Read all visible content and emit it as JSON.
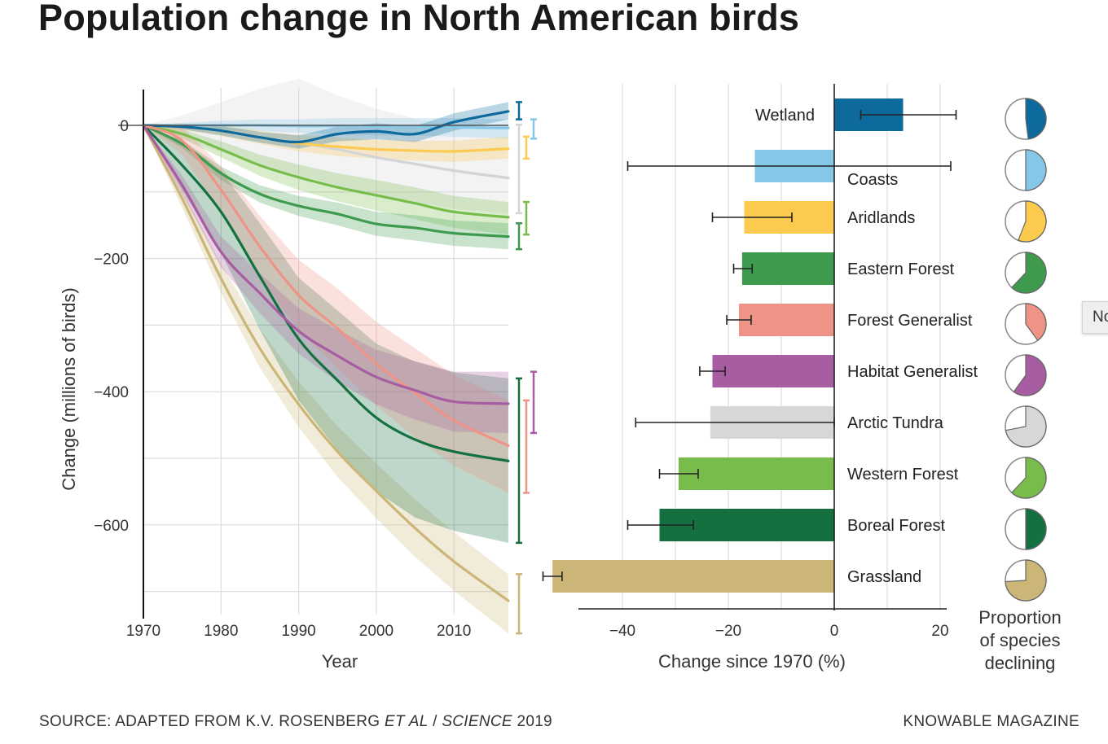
{
  "title": "Population change in North American birds",
  "footer": {
    "source_prefix": "SOURCE: ADAPTED FROM K.V. ROSENBERG ",
    "source_italic1": "ET AL",
    "source_mid": " / ",
    "source_italic2": "SCIENCE",
    "source_suffix": " 2019",
    "brand": "KNOWABLE MAGAZINE"
  },
  "tooltip_fragment": "No",
  "chart_data": [
    {
      "type": "line",
      "xlabel": "Year",
      "ylabel": "Change (millions of birds)",
      "xlim": [
        1970,
        2017
      ],
      "ylim": [
        -733,
        54
      ],
      "xticks": [
        "1970",
        "1980",
        "1990",
        "2000",
        "2010"
      ],
      "yticks": [
        {
          "value": 0,
          "label": "0"
        },
        {
          "value": -200,
          "label": "−200"
        },
        {
          "value": -400,
          "label": "−400"
        },
        {
          "value": -600,
          "label": "−600"
        }
      ],
      "grid": true,
      "x": [
        1970,
        1975,
        1980,
        1985,
        1990,
        1995,
        2000,
        2005,
        2010,
        2017
      ],
      "series": [
        {
          "key": "arctic-tundra",
          "color": "#d3d4d6",
          "values": [
            0,
            -2,
            -8,
            -18,
            -26,
            -36,
            -48,
            -58,
            -68,
            -79
          ],
          "lower": [
            0,
            -20,
            -40,
            -60,
            -75,
            -90,
            -105,
            -115,
            -125,
            -132
          ],
          "upper": [
            0,
            15,
            35,
            55,
            70,
            45,
            25,
            10,
            0,
            1
          ]
        },
        {
          "key": "coasts",
          "color": "#84c7e6",
          "values": [
            0,
            0,
            0,
            0,
            -1,
            -1,
            -2,
            -2,
            -3,
            -4
          ],
          "lower": [
            0,
            -4,
            -7,
            -9,
            -11,
            -13,
            -15,
            -15,
            -17,
            -20
          ],
          "upper": [
            0,
            4,
            7,
            9,
            9,
            11,
            11,
            11,
            11,
            9
          ]
        },
        {
          "key": "aridlands",
          "color": "#fcca4f",
          "values": [
            0,
            -2,
            -8,
            -18,
            -27,
            -32,
            -36,
            -38,
            -39,
            -35
          ],
          "lower": [
            0,
            -7,
            -16,
            -28,
            -39,
            -46,
            -50,
            -53,
            -55,
            -50
          ],
          "upper": [
            0,
            3,
            0,
            -8,
            -15,
            -18,
            -22,
            -23,
            -23,
            -17
          ]
        },
        {
          "key": "western-forest",
          "color": "#78bd4c",
          "values": [
            0,
            -13,
            -36,
            -60,
            -78,
            -93,
            -105,
            -117,
            -130,
            -138
          ],
          "lower": [
            0,
            -20,
            -48,
            -76,
            -97,
            -114,
            -128,
            -141,
            -154,
            -164
          ],
          "upper": [
            0,
            -6,
            -24,
            -44,
            -59,
            -72,
            -82,
            -93,
            -106,
            -115
          ]
        },
        {
          "key": "eastern-forest",
          "color": "#3e9a4c",
          "values": [
            0,
            -28,
            -72,
            -103,
            -121,
            -133,
            -148,
            -154,
            -162,
            -167
          ],
          "lower": [
            0,
            -34,
            -82,
            -116,
            -136,
            -150,
            -166,
            -173,
            -181,
            -186
          ],
          "upper": [
            0,
            -22,
            -62,
            -90,
            -106,
            -116,
            -130,
            -135,
            -143,
            -147
          ]
        },
        {
          "key": "wetland",
          "color": "#0e6a9c",
          "values": [
            0,
            -2,
            -8,
            -18,
            -25,
            -13,
            -9,
            -13,
            5,
            21
          ],
          "lower": [
            0,
            -6,
            -15,
            -26,
            -35,
            -24,
            -21,
            -25,
            -8,
            9
          ],
          "upper": [
            0,
            2,
            -1,
            -10,
            -15,
            -2,
            3,
            -1,
            18,
            35
          ]
        },
        {
          "key": "grassland",
          "color": "#cbb677",
          "values": [
            0,
            -110,
            -230,
            -335,
            -419,
            -490,
            -549,
            -605,
            -655,
            -714
          ],
          "lower": [
            0,
            -124,
            -252,
            -364,
            -453,
            -528,
            -590,
            -648,
            -699,
            -763
          ],
          "upper": [
            0,
            -96,
            -208,
            -306,
            -385,
            -452,
            -508,
            -562,
            -611,
            -674
          ]
        },
        {
          "key": "boreal-forest",
          "color": "#157040",
          "values": [
            0,
            -60,
            -130,
            -227,
            -321,
            -383,
            -439,
            -472,
            -490,
            -504
          ],
          "lower": [
            0,
            -97,
            -192,
            -307,
            -413,
            -488,
            -550,
            -589,
            -609,
            -627
          ],
          "upper": [
            0,
            -23,
            -68,
            -147,
            -229,
            -278,
            -328,
            -355,
            -371,
            -380
          ]
        },
        {
          "key": "forest-generalist",
          "color": "#ee9486",
          "values": [
            0,
            -23,
            -97,
            -182,
            -255,
            -305,
            -358,
            -402,
            -443,
            -481
          ],
          "lower": [
            0,
            -44,
            -132,
            -228,
            -308,
            -365,
            -421,
            -469,
            -511,
            -552
          ],
          "upper": [
            0,
            -2,
            -62,
            -136,
            -202,
            -245,
            -295,
            -335,
            -375,
            -413
          ]
        },
        {
          "key": "habitat-generalist",
          "color": "#a85ca1",
          "values": [
            0,
            -90,
            -190,
            -252,
            -309,
            -346,
            -378,
            -398,
            -415,
            -418
          ],
          "lower": [
            0,
            -104,
            -213,
            -282,
            -343,
            -385,
            -419,
            -442,
            -460,
            -462
          ],
          "upper": [
            0,
            -76,
            -167,
            -222,
            -275,
            -307,
            -337,
            -354,
            -370,
            -370
          ]
        }
      ]
    },
    {
      "type": "bar",
      "orientation": "horizontal",
      "xlabel": "Change since 1970 (%)",
      "xlim": [
        -48,
        21
      ],
      "xticks": [
        {
          "value": -40,
          "label": "−40"
        },
        {
          "value": -20,
          "label": "−20"
        },
        {
          "value": 0,
          "label": "0"
        },
        {
          "value": 20,
          "label": "20"
        }
      ],
      "grid": true,
      "categories": [
        "Wetland",
        "Coasts",
        "Aridlands",
        "Eastern Forest",
        "Forest Generalist",
        "Habitat Generalist",
        "Arctic Tundra",
        "Western Forest",
        "Boreal Forest",
        "Grassland"
      ],
      "colors": [
        "#0e6a9c",
        "#84c7e6",
        "#fcca4f",
        "#3e9a4c",
        "#ee9486",
        "#a85ca1",
        "#d6d7d9",
        "#78bd4c",
        "#157040",
        "#cbb677"
      ],
      "values": [
        13,
        -15,
        -17,
        -17.4,
        -18,
        -23,
        -23.4,
        -29.4,
        -33,
        -53.2
      ],
      "error_low": [
        5,
        -39,
        -23,
        -19,
        -20.3,
        -25.4,
        -37.5,
        -33,
        -39,
        -55
      ],
      "error_high": [
        23,
        22,
        -8,
        -15.5,
        -15.7,
        -20.6,
        0,
        -25.7,
        -26.6,
        -51.4
      ]
    },
    {
      "type": "pie",
      "title_lines": [
        "Proportion",
        "of species",
        "declining"
      ],
      "categories": [
        "Wetland",
        "Coasts",
        "Aridlands",
        "Eastern Forest",
        "Forest Generalist",
        "Habitat Generalist",
        "Arctic Tundra",
        "Western Forest",
        "Boreal Forest",
        "Grassland"
      ],
      "proportion_declining": [
        0.48,
        0.5,
        0.56,
        0.62,
        0.4,
        0.6,
        0.72,
        0.62,
        0.5,
        0.74
      ]
    }
  ]
}
